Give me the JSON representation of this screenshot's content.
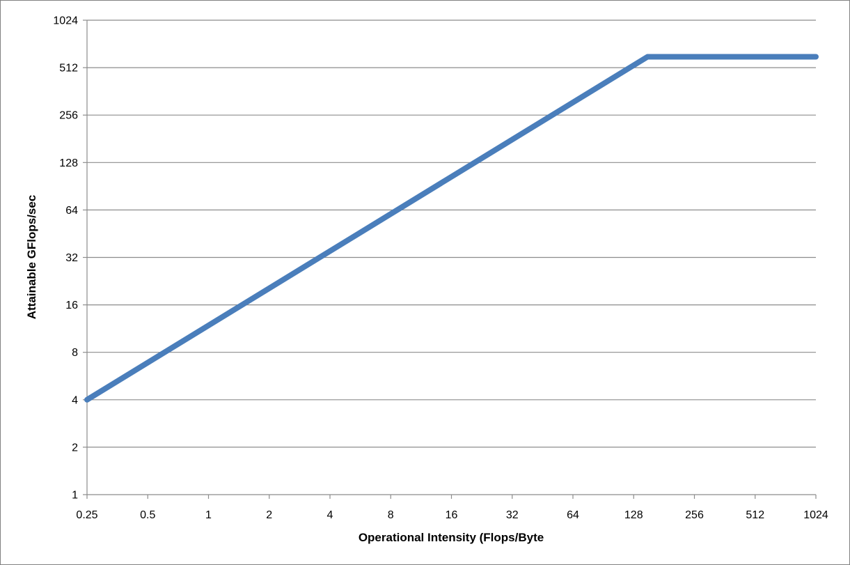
{
  "chart_data": {
    "type": "line",
    "xlabel": "Operational Intensity (Flops/Byte",
    "ylabel": "Attainable GFlops/sec",
    "x_scale": "log2",
    "y_scale": "log2",
    "xlim": [
      0.25,
      1024
    ],
    "ylim": [
      1,
      1024
    ],
    "x_ticks": [
      "0.25",
      "0.5",
      "1",
      "2",
      "4",
      "8",
      "16",
      "32",
      "64",
      "128",
      "256",
      "512",
      "1024"
    ],
    "y_ticks": [
      "1",
      "2",
      "4",
      "8",
      "16",
      "32",
      "64",
      "128",
      "256",
      "512",
      "1024"
    ],
    "grid": "horizontal",
    "legend": "none",
    "series": [
      {
        "color": "#4a7ebb",
        "x": [
          0.25,
          150,
          1024
        ],
        "y": [
          4,
          600,
          600
        ]
      }
    ]
  }
}
